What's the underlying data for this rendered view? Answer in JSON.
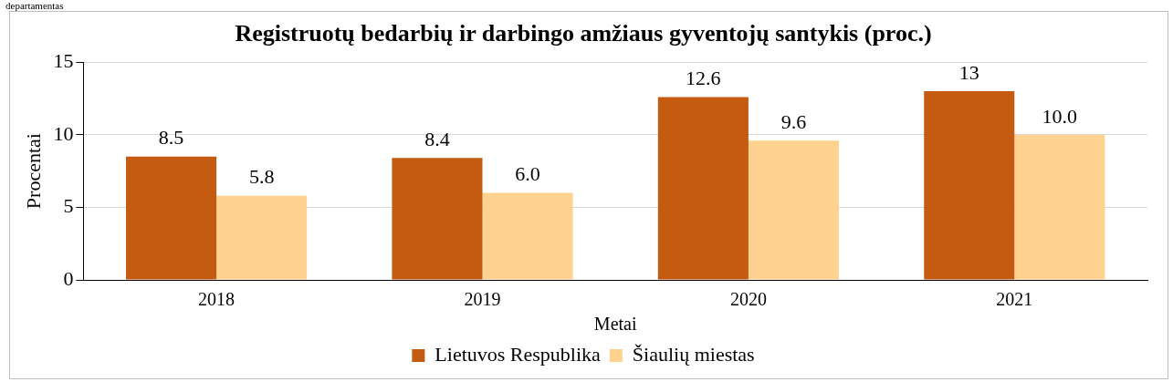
{
  "chart_data": {
    "type": "bar",
    "title": "Registruotų bedarbių ir darbingo amžiaus gyventojų santykis (proc.)",
    "xlabel": "Metai",
    "ylabel": "Procentai",
    "annotations": [
      "departamentas"
    ],
    "categories": [
      "2018",
      "2019",
      "2020",
      "2021"
    ],
    "series": [
      {
        "name": "Lietuvos Respublika",
        "color": "#c55a11",
        "values": [
          8.5,
          8.4,
          12.6,
          13
        ],
        "value_labels": [
          "8.5",
          "8.4",
          "12.6",
          "13"
        ]
      },
      {
        "name": "Šiaulių miestas",
        "color": "#ffd28f",
        "values": [
          5.8,
          6.0,
          9.6,
          10.0
        ],
        "value_labels": [
          "5.8",
          "6.0",
          "9.6",
          "10.0"
        ]
      }
    ],
    "ylim": [
      0,
      15
    ],
    "yticks": [
      0,
      5,
      10,
      15
    ],
    "grid": "y",
    "legend": "bottom"
  }
}
